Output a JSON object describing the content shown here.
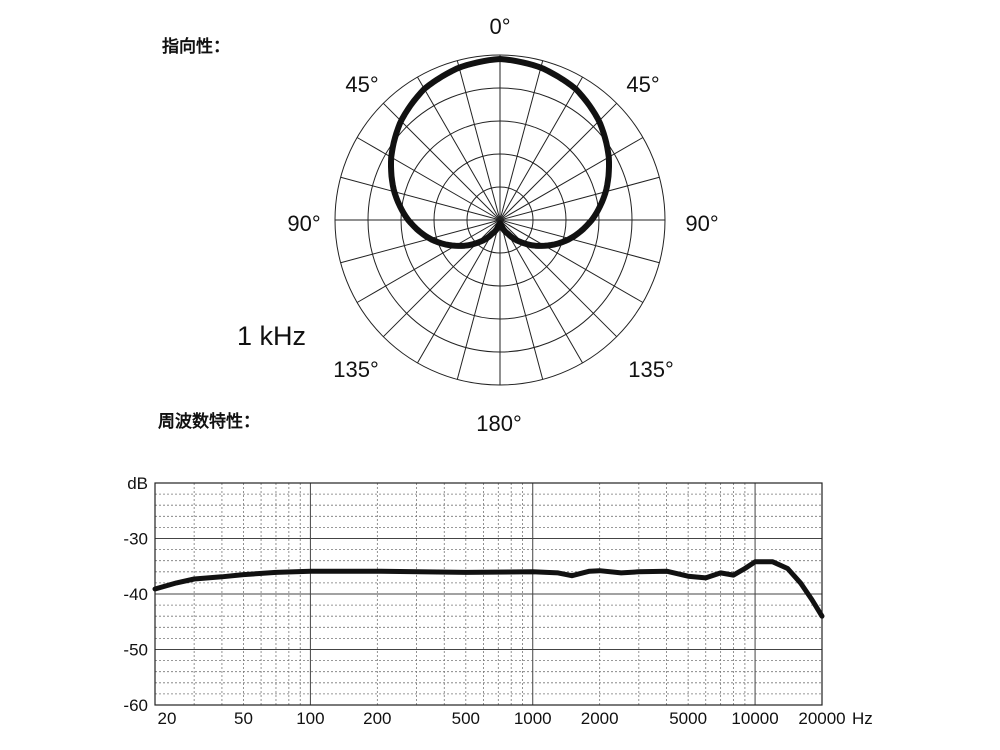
{
  "polar": {
    "title": "指向性：",
    "frequency_label": "1 kHz",
    "angle_labels": {
      "top": "0°",
      "upper_left": "45°",
      "upper_right": "45°",
      "left": "90°",
      "right": "90°",
      "lower_left": "135°",
      "lower_right": "135°",
      "bottom": "180°"
    }
  },
  "response": {
    "title": "周波数特性："
  },
  "chart_data": [
    {
      "type": "polar",
      "pattern": "cardioid",
      "frequency": "1 kHz",
      "angles_deg": [
        0,
        15,
        30,
        45,
        60,
        75,
        90,
        105,
        120,
        135,
        150,
        165,
        180
      ],
      "relative_level": [
        1.0,
        0.98,
        0.94,
        0.87,
        0.78,
        0.68,
        0.57,
        0.45,
        0.32,
        0.2,
        0.1,
        0.04,
        0.02
      ],
      "rings": 5,
      "spokes_every_deg": 15
    },
    {
      "type": "line",
      "ylabel": "dB",
      "x_unit": "Hz",
      "x_scale": "log",
      "xlim": [
        20,
        20000
      ],
      "ylim": [
        -60,
        -20
      ],
      "x_ticks": [
        20,
        50,
        100,
        200,
        500,
        1000,
        2000,
        5000,
        10000,
        20000
      ],
      "x_tick_labels": [
        "20",
        "50",
        "100",
        "200",
        "500",
        "1000",
        "2000",
        "5000",
        "10000",
        "20000"
      ],
      "x_unit_label": "Hz",
      "y_ticks": [
        -30,
        -40,
        -50,
        -60
      ],
      "y_tick_labels": [
        "-30",
        "-40",
        "-50",
        "-60"
      ],
      "grid": true,
      "x": [
        20,
        25,
        30,
        40,
        50,
        70,
        100,
        200,
        500,
        1000,
        1300,
        1500,
        1800,
        2000,
        2500,
        3000,
        4000,
        5000,
        6000,
        7000,
        8000,
        9000,
        10000,
        12000,
        14000,
        16000,
        18000,
        20000
      ],
      "y": [
        -39.1,
        -38.0,
        -37.3,
        -36.9,
        -36.5,
        -36.1,
        -35.9,
        -35.9,
        -36.1,
        -36.0,
        -36.2,
        -36.7,
        -35.9,
        -35.8,
        -36.2,
        -36.0,
        -35.9,
        -36.8,
        -37.1,
        -36.2,
        -36.6,
        -35.4,
        -34.2,
        -34.2,
        -35.4,
        -38.0,
        -41.0,
        -44.0
      ]
    }
  ]
}
